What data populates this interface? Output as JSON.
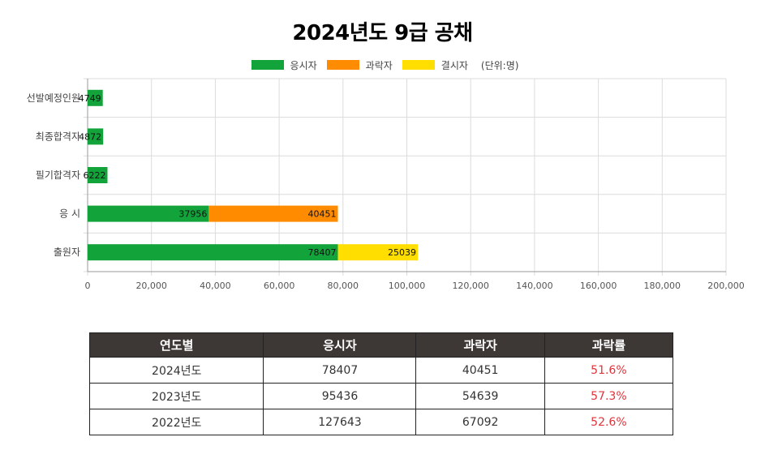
{
  "title": "2024년도 9급 공채",
  "legend": {
    "series": [
      {
        "name": "응시자",
        "color": "#12a33b"
      },
      {
        "name": "과락자",
        "color": "#ff8c00"
      },
      {
        "name": "결시자",
        "color": "#ffde00"
      }
    ],
    "unit": "(단위:명)"
  },
  "chart_data": {
    "type": "bar",
    "orientation": "horizontal",
    "stacked": true,
    "title": "2024년도 9급 공채",
    "categories": [
      "선발예정인원",
      "최종합격자",
      "필기합격자",
      "응 시",
      "출원자"
    ],
    "series": [
      {
        "name": "응시자",
        "color": "#12a33b",
        "values": [
          4749,
          4872,
          6222,
          37956,
          78407
        ]
      },
      {
        "name": "과락자",
        "color": "#ff8c00",
        "values": [
          null,
          null,
          null,
          40451,
          null
        ]
      },
      {
        "name": "결시자",
        "color": "#ffde00",
        "values": [
          null,
          null,
          null,
          null,
          25039
        ]
      }
    ],
    "xlim": [
      0,
      200000
    ],
    "xticks": [
      "0",
      "20,000",
      "40,000",
      "60,000",
      "80,000",
      "100,000",
      "120,000",
      "140,000",
      "160,000",
      "180,000",
      "200,000"
    ],
    "xtick_values": [
      0,
      20000,
      40000,
      60000,
      80000,
      100000,
      120000,
      140000,
      160000,
      180000,
      200000
    ],
    "grid": true,
    "legend_position": "top"
  },
  "table": {
    "headers": [
      "연도별",
      "응시자",
      "과락자",
      "과락률"
    ],
    "rows": [
      [
        "2024년도",
        "78407",
        "40451",
        "51.6%"
      ],
      [
        "2023년도",
        "95436",
        "54639",
        "57.3%"
      ],
      [
        "2022년도",
        "127643",
        "67092",
        "52.6%"
      ]
    ]
  }
}
